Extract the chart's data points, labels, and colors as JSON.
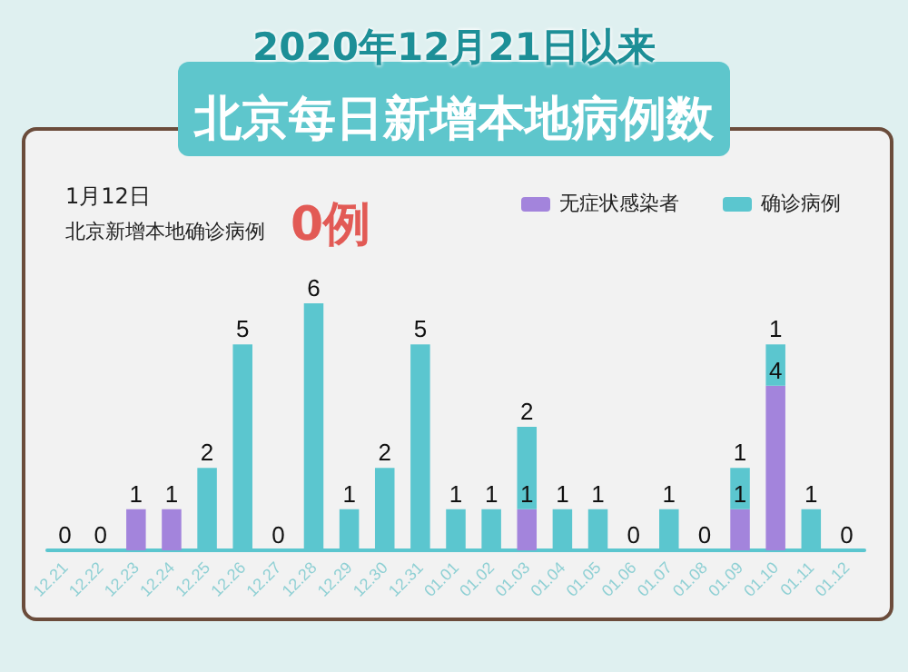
{
  "chart_data": {
    "type": "bar",
    "subtitle": "2020年12月21日以来",
    "title": "北京每日新增本地病例数",
    "annotations": [
      "1月12日",
      "北京新增本地确诊病例",
      "0例"
    ],
    "categories": [
      "12.21",
      "12.22",
      "12.23",
      "12.24",
      "12.25",
      "12.26",
      "12.27",
      "12.28",
      "12.29",
      "12.30",
      "12.31",
      "01.01",
      "01.02",
      "01.03",
      "01.04",
      "01.05",
      "01.06",
      "01.07",
      "01.08",
      "01.09",
      "01.10",
      "01.11",
      "01.12"
    ],
    "stacked": true,
    "legend": "top right",
    "series": [
      {
        "name": "无症状感染者",
        "color": "#a384dc",
        "values": [
          0,
          0,
          1,
          1,
          0,
          0,
          0,
          0,
          0,
          0,
          0,
          0,
          0,
          1,
          0,
          0,
          0,
          0,
          0,
          1,
          4,
          0,
          0
        ],
        "value_labels": [
          null,
          null,
          "1",
          "1",
          null,
          null,
          null,
          null,
          null,
          null,
          null,
          null,
          null,
          "1",
          null,
          null,
          null,
          null,
          null,
          "1",
          "4",
          null,
          null
        ]
      },
      {
        "name": "确诊病例",
        "color": "#5bc6cf",
        "values": [
          0,
          0,
          0,
          0,
          2,
          5,
          0,
          6,
          1,
          2,
          5,
          1,
          1,
          2,
          1,
          1,
          0,
          1,
          0,
          1,
          1,
          1,
          0
        ],
        "value_labels": [
          "0",
          "0",
          null,
          null,
          "2",
          "5",
          "0",
          "6",
          "1",
          "2",
          "5",
          "1",
          "1",
          "2",
          "1",
          "1",
          "0",
          "1",
          "0",
          "1",
          "1",
          "1",
          "0"
        ]
      }
    ]
  }
}
